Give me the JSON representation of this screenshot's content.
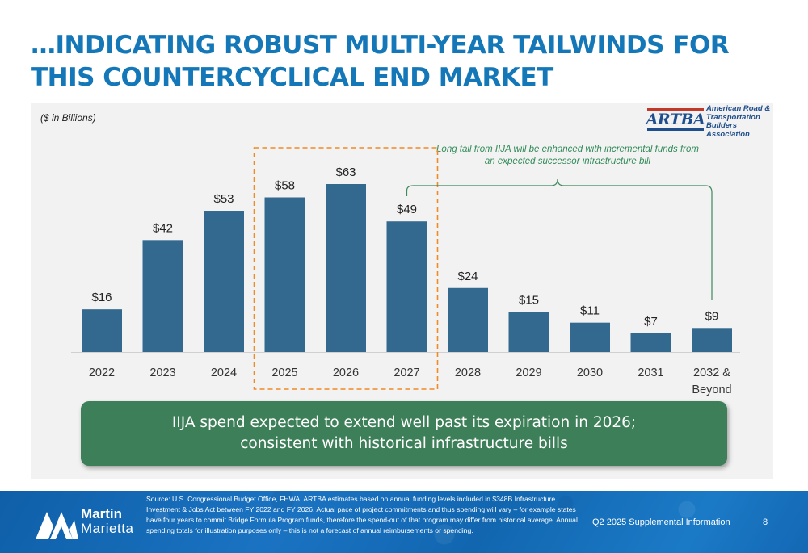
{
  "slide": {
    "title": "…INDICATING ROBUST MULTI-YEAR TAILWINDS FOR THIS COUNTERCYCLICAL END MARKET",
    "units_note": "($ in Billions)",
    "annotation": "Long tail from IIJA will be enhanced with incremental funds from an expected successor infrastructure bill",
    "callout_line1": "IIJA spend expected to extend well past its expiration in 2026;",
    "callout_line2": "consistent with historical infrastructure bills"
  },
  "logos": {
    "artba_mark": "ARTBA",
    "artba_name": [
      "American Road &",
      "Transportation Builders",
      "Association"
    ],
    "company_line1": "Martin",
    "company_line2": "Marietta"
  },
  "footer": {
    "source": "Source: U.S. Congressional Budget Office, FHWA, ARTBA estimates based on annual funding levels included in $348B Infrastructure Investment & Jobs Act between FY 2022 and FY 2026. Actual pace of project commitments and thus spending will vary – for example states have four years to commit Bridge Formula Program funds, therefore the spend-out of that program may differ from historical average. Annual spending totals for illustration purposes only – this is not a forecast of annual reimbursements or spending.",
    "presentation": "Q2 2025 Supplemental Information",
    "page": "8"
  },
  "colors": {
    "title": "#1478b8",
    "bar": "#33698e",
    "highlight_box": "#f08a24",
    "bracket": "#3d8a5c",
    "callout": "#3d7f58"
  },
  "chart_data": {
    "type": "bar",
    "categories": [
      "2022",
      "2023",
      "2024",
      "2025",
      "2026",
      "2027",
      "2028",
      "2029",
      "2030",
      "2031",
      "2032 &\nBeyond"
    ],
    "values": [
      16,
      42,
      53,
      58,
      63,
      49,
      24,
      15,
      11,
      7,
      9
    ],
    "value_labels": [
      "$16",
      "$42",
      "$53",
      "$58",
      "$63",
      "$49",
      "$24",
      "$15",
      "$11",
      "$7",
      "$9"
    ],
    "highlighted_categories": [
      "2025",
      "2026",
      "2027"
    ],
    "bracket_span": [
      "2027",
      "2032 &\nBeyond"
    ],
    "ylim": [
      0,
      63
    ],
    "grid": false,
    "title": "",
    "xlabel": "",
    "ylabel": "($ in Billions)"
  }
}
